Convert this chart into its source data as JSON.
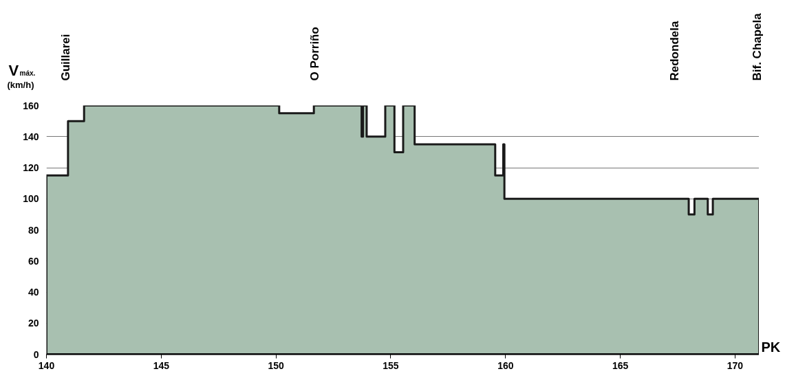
{
  "chart_data": {
    "type": "area",
    "ylabel": "V$_{máx.}$ (km/h)",
    "xlabel": "PK",
    "series": [
      {
        "color": "#a8c0b0",
        "x": [
          140,
          140.94,
          141.64,
          150.14,
          151.65,
          153.73,
          153.79,
          153.95,
          154.76,
          155.16,
          155.54,
          156.04,
          159.55,
          159.9,
          159.95,
          167.98,
          168.23,
          168.81,
          169.03,
          171.05
        ],
        "values": [
          115,
          150,
          160,
          155,
          160,
          140,
          160,
          140,
          160,
          130,
          160,
          135,
          115,
          135,
          100,
          90,
          100,
          90,
          100,
          100
        ]
      }
    ],
    "xlim": [
      140,
      171.05
    ],
    "ylim": [
      0,
      160
    ],
    "xticks": [
      140,
      145,
      150,
      155,
      160,
      165,
      170
    ],
    "yticks": [
      0,
      20,
      40,
      60,
      80,
      100,
      120,
      140,
      160
    ],
    "grid": "y",
    "annotations": [
      "Guillarei",
      "O Porriño",
      "Redondela",
      "Bif. Chapela"
    ]
  }
}
